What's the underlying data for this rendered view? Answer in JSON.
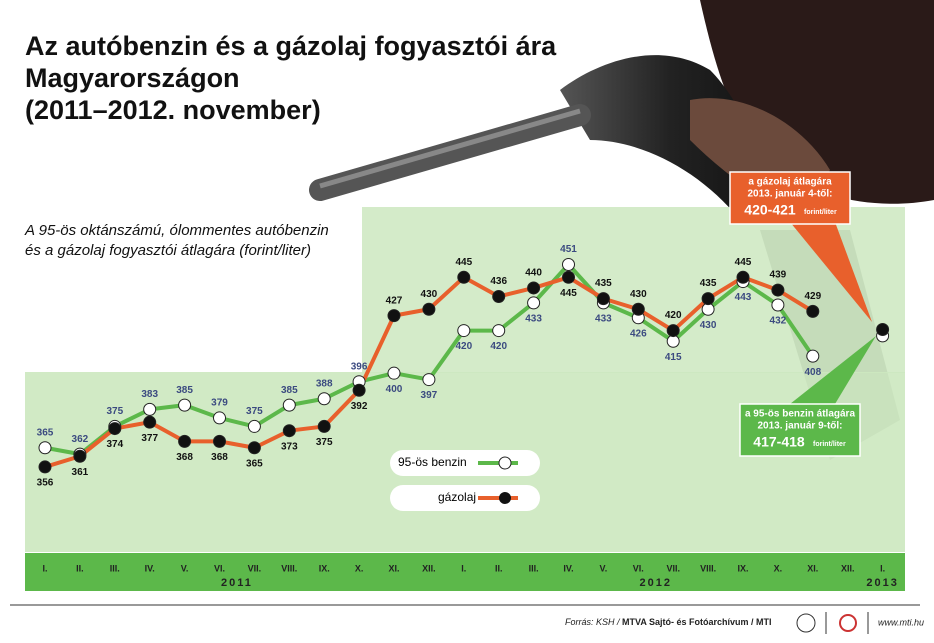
{
  "chart_data": {
    "type": "line",
    "title": [
      "Az autóbenzin és a gázolaj fogyasztói ára",
      "Magyarországon",
      "(2011–2012. november)"
    ],
    "subtitle": [
      "A 95-ös oktánszámú, ólommentes autóbenzin",
      "és a gázolaj fogyasztói átlagára (forint/liter)"
    ],
    "categories": [
      "I.",
      "II.",
      "III.",
      "IV.",
      "V.",
      "VI.",
      "VII.",
      "VIII.",
      "IX.",
      "X.",
      "XI.",
      "XII.",
      "I.",
      "II.",
      "III.",
      "IV.",
      "V.",
      "VI.",
      "VII.",
      "VIII.",
      "IX.",
      "X.",
      "XI.",
      "XII.",
      "I."
    ],
    "year_labels": [
      "2011",
      "2012",
      "2013"
    ],
    "ylim": [
      317,
      478
    ],
    "series": [
      {
        "name": "95-ös benzin",
        "color": "#5cb84a",
        "label_color": "#3b4a80",
        "values": [
          365,
          362,
          375,
          383,
          385,
          379,
          375,
          385,
          388,
          396,
          400,
          397,
          420,
          420,
          433,
          451,
          433,
          426,
          415,
          430,
          443,
          432,
          408,
          null,
          417.5
        ]
      },
      {
        "name": "gázolaj",
        "color": "#e8602c",
        "label_color": "#111111",
        "values": [
          356,
          361,
          374,
          377,
          368,
          368,
          365,
          373,
          375,
          392,
          427,
          430,
          445,
          436,
          440,
          445,
          435,
          430,
          420,
          435,
          445,
          439,
          429,
          null,
          420.5
        ]
      }
    ],
    "annotations": [
      {
        "lines": [
          "a gázolaj átlagára",
          "2013. január 4-től:"
        ],
        "value": "420-421",
        "unit": "forint/liter"
      },
      {
        "lines": [
          "a 95-ös benzin átlagára",
          "2013. január 9-től:"
        ],
        "value": "417-418",
        "unit": "forint/liter"
      }
    ],
    "source": [
      "Forrás: KSH / ",
      "MTVA Sajtó- és Fotóarchívum / MTI"
    ],
    "website": "www.mti.hu"
  }
}
